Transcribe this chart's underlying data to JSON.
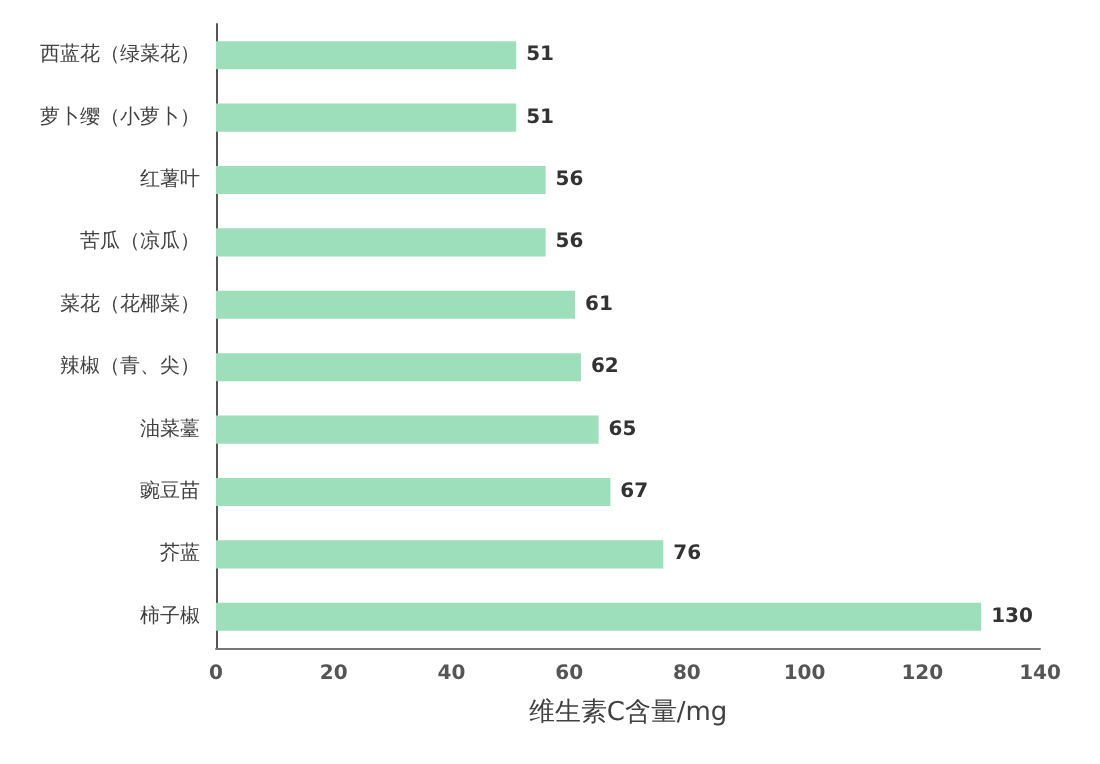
{
  "chart_data": {
    "type": "bar",
    "orientation": "horizontal",
    "xlabel": "维生素C含量/mg",
    "categories": [
      "西蓝花（绿菜花）",
      "萝卜缨（小萝卜）",
      "红薯叶",
      "苦瓜（凉瓜）",
      "菜花（花椰菜）",
      "辣椒（青、尖）",
      "油菜薹",
      "豌豆苗",
      "芥蓝",
      "柿子椒"
    ],
    "values": [
      51,
      51,
      56,
      56,
      61,
      62,
      65,
      67,
      76,
      130
    ],
    "color": "#9ddfbb",
    "data_labels": true,
    "xlim": [
      0,
      140
    ],
    "xticks": [
      0,
      20,
      40,
      60,
      80,
      100,
      120,
      140
    ]
  }
}
